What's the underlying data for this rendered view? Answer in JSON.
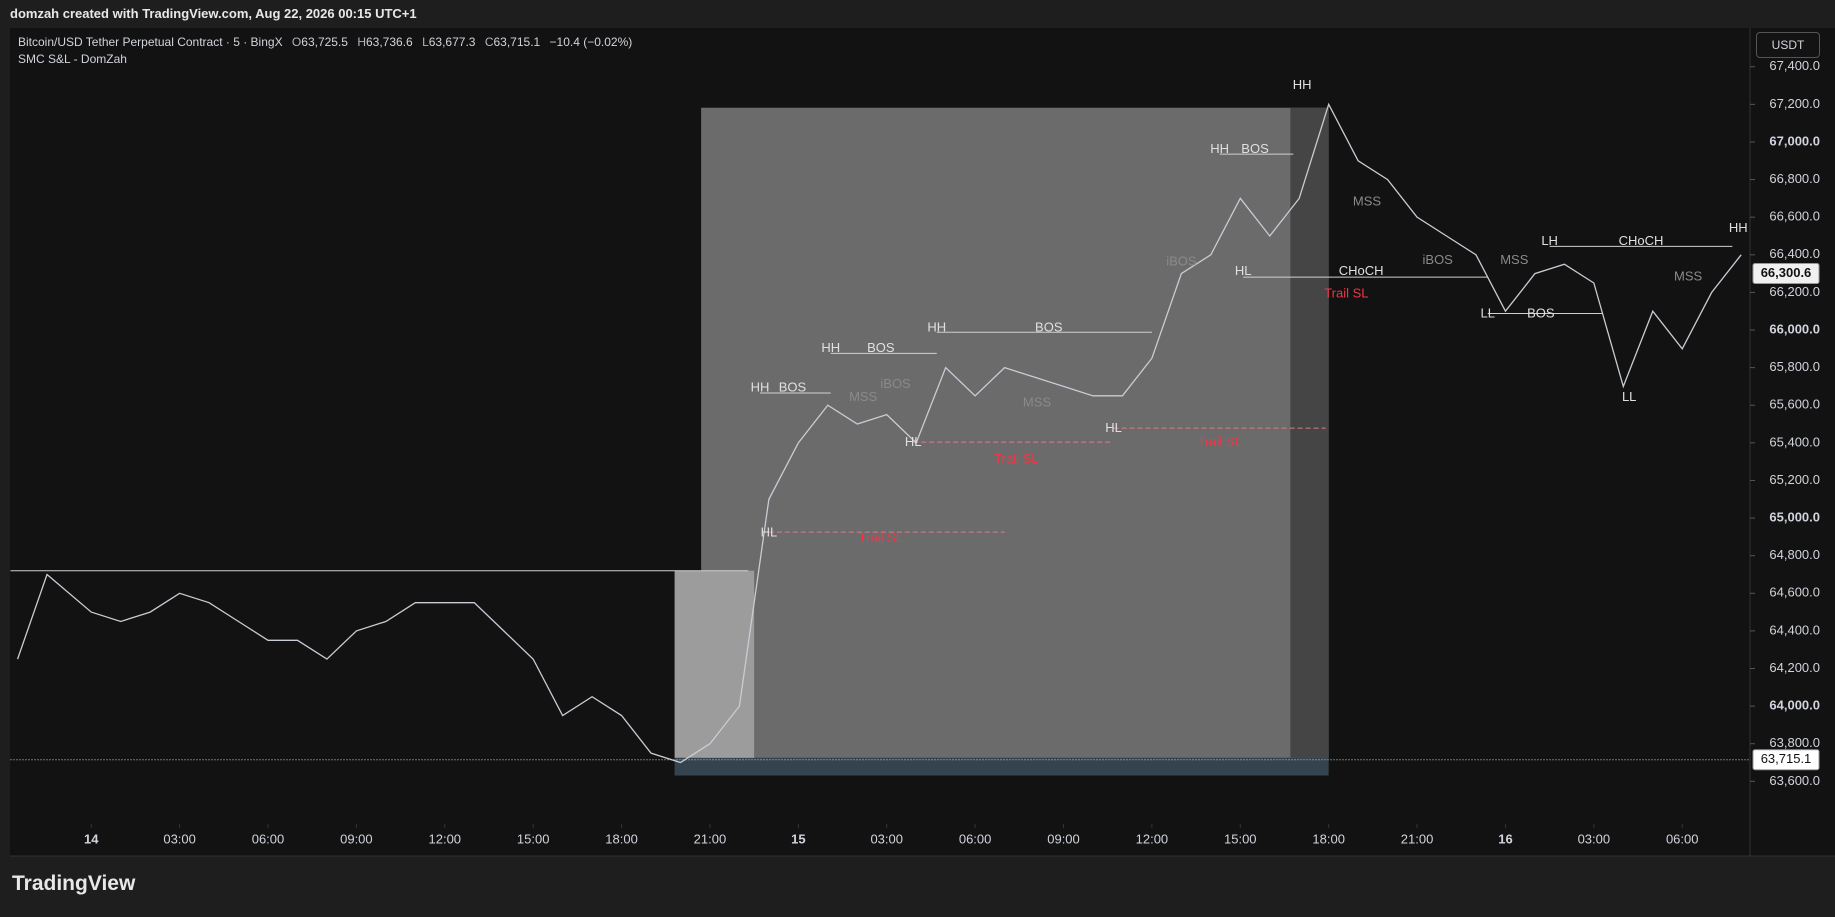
{
  "header": {
    "text": "domzah created with TradingView.com, Aug 22, 2026 00:15 UTC+1"
  },
  "legend": {
    "symbol": "Bitcoin/USD Tether Perpetual Contract · 5 · BingX",
    "o_label": "O",
    "o": "63,725.5",
    "h_label": "H",
    "h": "63,736.6",
    "l_label": "L",
    "l": "63,677.3",
    "c_label": "C",
    "c": "63,715.1",
    "change": "−10.4 (−0.02%)",
    "indicator": "SMC S&L - DomZah"
  },
  "currency": "USDT",
  "footer": {
    "logo": "TradingView"
  },
  "chart": {
    "type": "line",
    "xlim": [
      -2.74,
      56.3
    ],
    "ylim": [
      63203,
      67606
    ],
    "yticks": [
      {
        "value": 63600,
        "label": "63,600.0"
      },
      {
        "value": 63800,
        "label": "63,800.0"
      },
      {
        "value": 64000,
        "label": "64,000.0"
      },
      {
        "value": 64200,
        "label": "64,200.0"
      },
      {
        "value": 64400,
        "label": "64,400.0"
      },
      {
        "value": 64600,
        "label": "64,600.0"
      },
      {
        "value": 64800,
        "label": "64,800.0"
      },
      {
        "value": 65000,
        "label": "65,000.0"
      },
      {
        "value": 65200,
        "label": "65,200.0"
      },
      {
        "value": 65400,
        "label": "65,400.0"
      },
      {
        "value": 65600,
        "label": "65,600.0"
      },
      {
        "value": 65800,
        "label": "65,800.0"
      },
      {
        "value": 66000,
        "label": "66,000.0"
      },
      {
        "value": 66200,
        "label": "66,200.0"
      },
      {
        "value": 66400,
        "label": "66,400.0"
      },
      {
        "value": 66600,
        "label": "66,600.0"
      },
      {
        "value": 66800,
        "label": "66,800.0"
      },
      {
        "value": 67000,
        "label": "67,000.0"
      },
      {
        "value": 67200,
        "label": "67,200.0"
      },
      {
        "value": 67400,
        "label": "67,400.0"
      }
    ],
    "xticks": [
      {
        "value": 0,
        "label": "14"
      },
      {
        "value": 3,
        "label": "03:00"
      },
      {
        "value": 6,
        "label": "06:00"
      },
      {
        "value": 9,
        "label": "09:00"
      },
      {
        "value": 12,
        "label": "12:00"
      },
      {
        "value": 15,
        "label": "15:00"
      },
      {
        "value": 18,
        "label": "18:00"
      },
      {
        "value": 21,
        "label": "21:00"
      },
      {
        "value": 24,
        "label": "15"
      },
      {
        "value": 27,
        "label": "03:00"
      },
      {
        "value": 30,
        "label": "06:00"
      },
      {
        "value": 33,
        "label": "09:00"
      },
      {
        "value": 36,
        "label": "12:00"
      },
      {
        "value": 39,
        "label": "15:00"
      },
      {
        "value": 42,
        "label": "18:00"
      },
      {
        "value": 45,
        "label": "21:00"
      },
      {
        "value": 48,
        "label": "16"
      },
      {
        "value": 51,
        "label": "03:00"
      },
      {
        "value": 54,
        "label": "06:00"
      }
    ],
    "series": {
      "color": "#c8ccd4",
      "x": [
        -2.5,
        -1.5,
        0,
        1,
        2,
        3,
        4,
        5,
        6,
        7,
        8,
        9,
        10,
        11,
        12,
        13,
        14,
        15,
        16,
        17,
        18,
        19,
        20,
        21,
        22,
        23,
        24,
        25,
        26,
        27,
        28,
        29,
        30,
        31,
        32,
        33,
        34,
        35,
        36,
        37,
        38,
        39,
        40,
        41,
        42,
        43,
        44,
        45,
        46,
        47,
        48,
        49,
        50,
        51,
        52,
        53,
        54,
        55,
        56
      ],
      "values": [
        64250,
        64700,
        64500,
        64450,
        64500,
        64600,
        64550,
        64450,
        64350,
        64350,
        64250,
        64400,
        64450,
        64550,
        64550,
        64550,
        64400,
        64250,
        63950,
        64050,
        63950,
        63750,
        63700,
        63800,
        64000,
        65100,
        65400,
        65600,
        65500,
        65550,
        65400,
        65800,
        65650,
        65800,
        65750,
        65700,
        65650,
        65650,
        65850,
        66300,
        66400,
        66700,
        66500,
        66700,
        67200,
        66900,
        66800,
        66600,
        66500,
        66400,
        66100,
        66300,
        66350,
        66250,
        65700,
        66100,
        65900,
        66200,
        66400
      ]
    },
    "price_marks": [
      {
        "value": 66300.6,
        "label": "66,300.6"
      },
      {
        "value": 63715.1,
        "label": "63,715.1"
      }
    ],
    "zones": [
      {
        "x0": 19.8,
        "x1": 42.0,
        "y0": 63631,
        "y1": 63725,
        "color": "#34434d"
      },
      {
        "x0": 20.7,
        "x1": 42.0,
        "y0": 63725,
        "y1": 67182,
        "color": "#6b6b6b"
      },
      {
        "x0": 40.7,
        "x1": 42.0,
        "y0": 63725,
        "y1": 67182,
        "color": "#454545"
      },
      {
        "x0": 19.8,
        "x1": 22.5,
        "y0": 63725,
        "y1": 64720,
        "color": "#9c9c9c"
      }
    ],
    "levels": [
      {
        "price": 64720,
        "x0": -2.74,
        "x1": 22.3,
        "color": "#d0d0d0",
        "dash": false
      },
      {
        "price": 65665,
        "x0": 22.7,
        "x1": 25.1,
        "color": "#d0d0d0",
        "dash": false
      },
      {
        "price": 65876,
        "x0": 25.1,
        "x1": 28.7,
        "color": "#d0d0d0",
        "dash": false
      },
      {
        "price": 65988,
        "x0": 28.7,
        "x1": 36.0,
        "color": "#d0d0d0",
        "dash": false
      },
      {
        "price": 66935,
        "x0": 38.3,
        "x1": 40.8,
        "color": "#d0d0d0",
        "dash": false
      },
      {
        "price": 66281,
        "x0": 39.1,
        "x1": 47.4,
        "color": "#d0d0d0",
        "dash": false
      },
      {
        "price": 66088,
        "x0": 47.4,
        "x1": 51.3,
        "color": "#d0d0d0",
        "dash": false
      },
      {
        "price": 66445,
        "x0": 49.5,
        "x1": 55.7,
        "color": "#d0d0d0",
        "dash": false
      },
      {
        "price": 64925,
        "x0": 23.0,
        "x1": 31.0,
        "color": "#e07a8a",
        "dash": true
      },
      {
        "price": 65404,
        "x0": 27.9,
        "x1": 34.6,
        "color": "#e07a8a",
        "dash": true
      },
      {
        "price": 65478,
        "x0": 34.7,
        "x1": 41.9,
        "color": "#e07a8a",
        "dash": true
      }
    ],
    "annotations": [
      {
        "text": "HH",
        "x": 41.1,
        "y": 67290,
        "color": "#e0e0e0"
      },
      {
        "text": "HH",
        "x": 38.3,
        "y": 66950,
        "color": "#e0e0e0"
      },
      {
        "text": "BOS",
        "x": 39.5,
        "y": 66950,
        "color": "#e0e0e0"
      },
      {
        "text": "HH",
        "x": 22.7,
        "y": 65680,
        "color": "#e0e0e0"
      },
      {
        "text": "BOS",
        "x": 23.8,
        "y": 65680,
        "color": "#e0e0e0"
      },
      {
        "text": "HH",
        "x": 25.1,
        "y": 65890,
        "color": "#e0e0e0"
      },
      {
        "text": "BOS",
        "x": 26.8,
        "y": 65890,
        "color": "#e0e0e0"
      },
      {
        "text": "HH",
        "x": 28.7,
        "y": 66000,
        "color": "#e0e0e0"
      },
      {
        "text": "BOS",
        "x": 32.5,
        "y": 66000,
        "color": "#e0e0e0"
      },
      {
        "text": "HL",
        "x": 23.0,
        "y": 64910,
        "color": "#e0e0e0"
      },
      {
        "text": "HL",
        "x": 27.9,
        "y": 65390,
        "color": "#e0e0e0"
      },
      {
        "text": "HL",
        "x": 34.7,
        "y": 65465,
        "color": "#e0e0e0"
      },
      {
        "text": "HL",
        "x": 39.1,
        "y": 66300,
        "color": "#e0e0e0"
      },
      {
        "text": "Trail SL",
        "x": 26.8,
        "y": 64880,
        "color": "#f23645"
      },
      {
        "text": "Trail SL",
        "x": 31.4,
        "y": 65300,
        "color": "#f23645"
      },
      {
        "text": "Trail SL",
        "x": 38.3,
        "y": 65390,
        "color": "#f23645"
      },
      {
        "text": "Trail SL",
        "x": 42.6,
        "y": 66180,
        "color": "#f23645"
      },
      {
        "text": "CHoCH",
        "x": 43.1,
        "y": 66300,
        "color": "#e0e0e0"
      },
      {
        "text": "CHoCH",
        "x": 52.6,
        "y": 66460,
        "color": "#e0e0e0"
      },
      {
        "text": "LL",
        "x": 47.4,
        "y": 66075,
        "color": "#e0e0e0"
      },
      {
        "text": "BOS",
        "x": 49.2,
        "y": 66075,
        "color": "#e0e0e0"
      },
      {
        "text": "LH",
        "x": 49.5,
        "y": 66460,
        "color": "#e0e0e0"
      },
      {
        "text": "LL",
        "x": 52.2,
        "y": 65630,
        "color": "#e0e0e0"
      },
      {
        "text": "HH",
        "x": 55.9,
        "y": 66530,
        "color": "#e0e0e0"
      },
      {
        "text": "MSS",
        "x": 43.3,
        "y": 66670,
        "color": "#8a8a8a"
      },
      {
        "text": "MSS",
        "x": 48.3,
        "y": 66360,
        "color": "#8a8a8a"
      },
      {
        "text": "MSS",
        "x": 54.2,
        "y": 66270,
        "color": "#8a8a8a"
      },
      {
        "text": "MSS",
        "x": 26.2,
        "y": 65630,
        "color": "#8a8a8a"
      },
      {
        "text": "MSS",
        "x": 32.1,
        "y": 65600,
        "color": "#8a8a8a"
      },
      {
        "text": "iBOS",
        "x": 45.7,
        "y": 66360,
        "color": "#8a8a8a"
      },
      {
        "text": "iBOS",
        "x": 37.0,
        "y": 66350,
        "color": "#8a8a8a"
      },
      {
        "text": "iBOS",
        "x": 27.3,
        "y": 65700,
        "color": "#8a8a8a"
      }
    ]
  }
}
